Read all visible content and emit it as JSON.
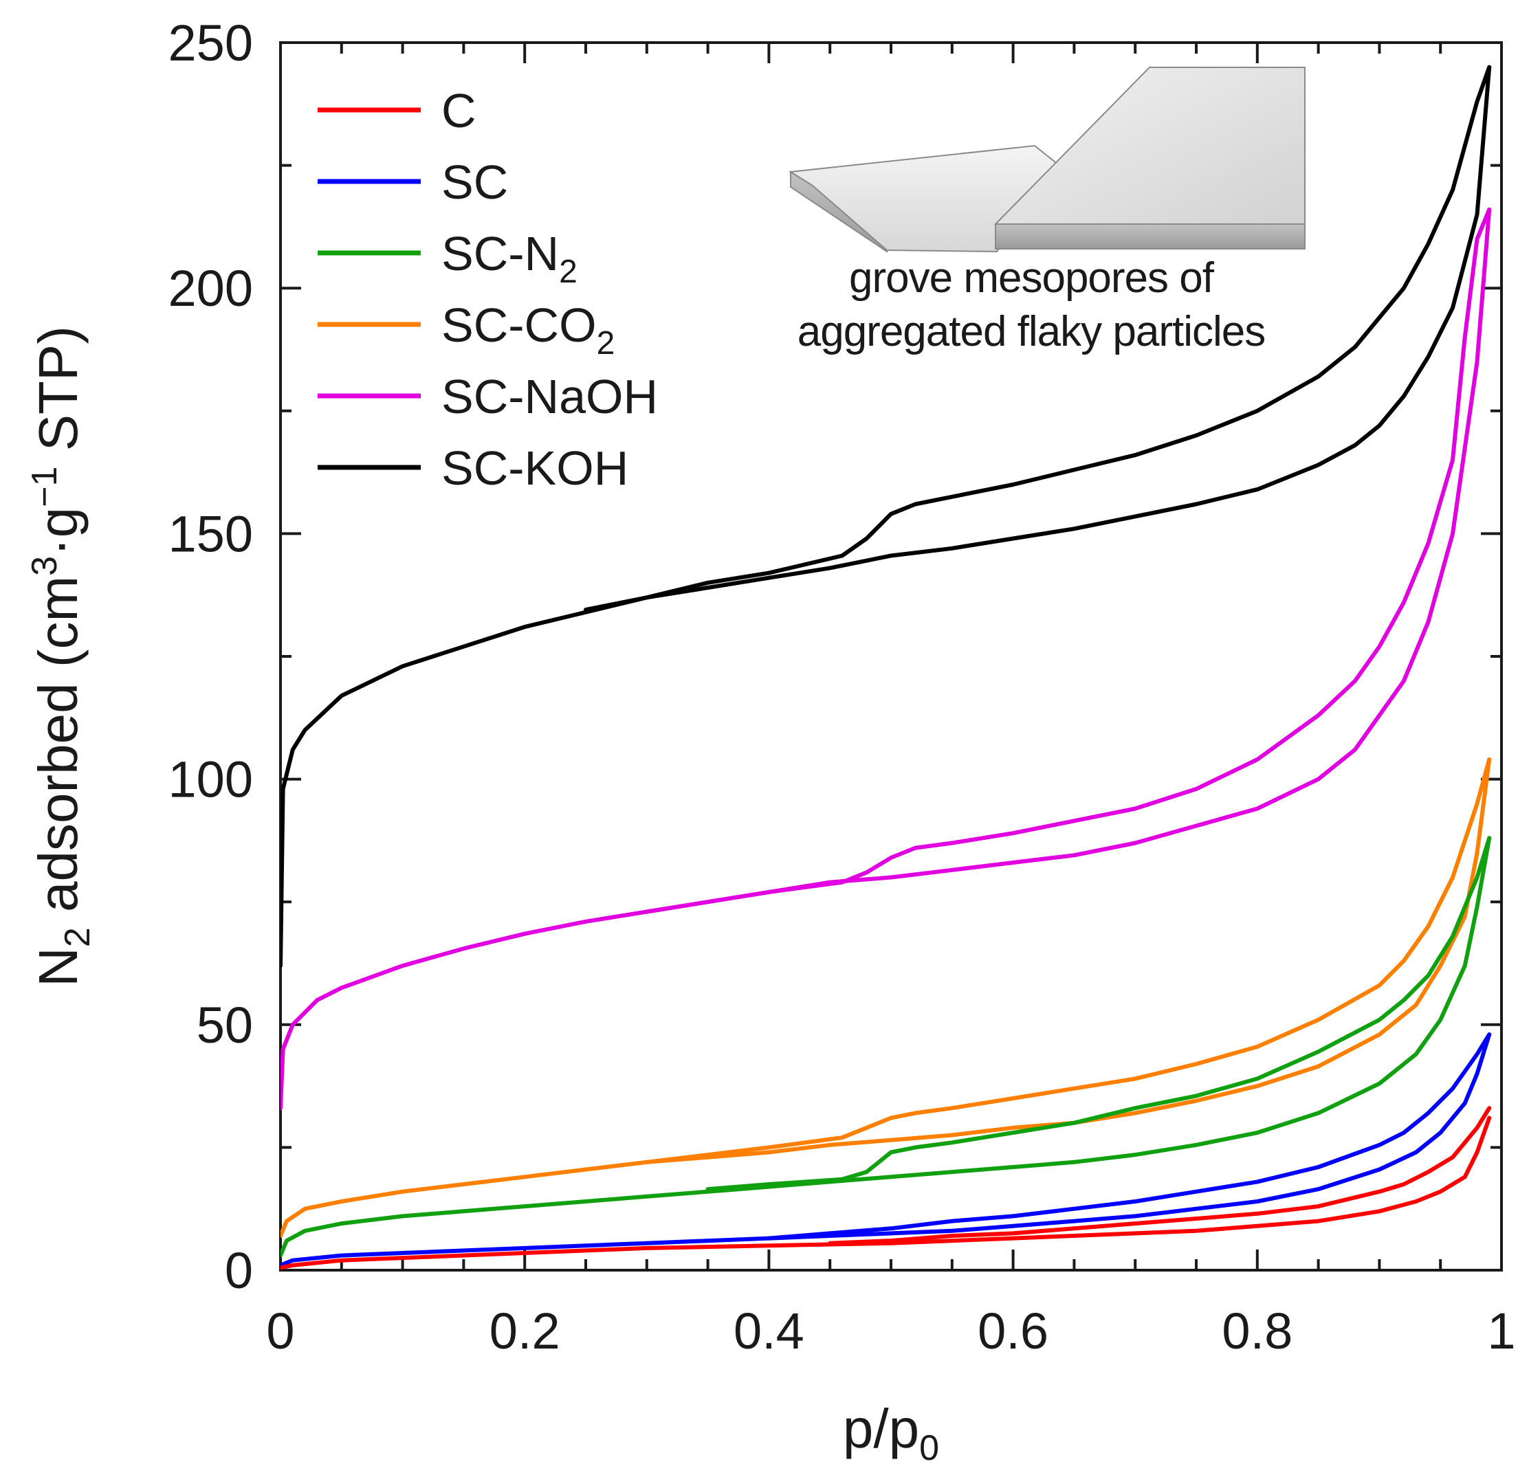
{
  "chart_data": {
    "type": "line",
    "xlabel": "p/p0",
    "xlabel_parts": {
      "main": "p/p",
      "sub": "0"
    },
    "ylabel": "N2 adsorbed (cm3·g−1 STP)",
    "ylabel_parts": {
      "a": "N",
      "a_sub": "2",
      "b": " adsorbed (cm",
      "b_sup": "3",
      "c": "·g",
      "c_sup": "−1",
      "d": " STP)"
    },
    "xlim": [
      0,
      1
    ],
    "ylim": [
      0,
      250
    ],
    "x_ticks": [
      0,
      0.2,
      0.4,
      0.6,
      0.8,
      1
    ],
    "x_tick_labels": [
      "0",
      "0.2",
      "0.4",
      "0.6",
      "0.8",
      "1"
    ],
    "y_ticks": [
      0,
      50,
      100,
      150,
      200,
      250
    ],
    "y_tick_labels": [
      "0",
      "50",
      "100",
      "150",
      "200",
      "250"
    ],
    "grid": false,
    "legend_position": "top-left",
    "inset": {
      "caption_line1": "grove mesopores of",
      "caption_line2": "aggregated flaky particles"
    },
    "series": [
      {
        "name": "SC-KOH",
        "label_main": "SC-KOH",
        "label_sub": "",
        "label_tail": "",
        "color": "#000000",
        "adsorption": [
          [
            0,
            62
          ],
          [
            0.002,
            98
          ],
          [
            0.01,
            106
          ],
          [
            0.02,
            110
          ],
          [
            0.05,
            117
          ],
          [
            0.1,
            123
          ],
          [
            0.15,
            127
          ],
          [
            0.2,
            131
          ],
          [
            0.25,
            134
          ],
          [
            0.3,
            137
          ],
          [
            0.35,
            139
          ],
          [
            0.4,
            141
          ],
          [
            0.45,
            143
          ],
          [
            0.5,
            145.5
          ],
          [
            0.55,
            147
          ],
          [
            0.6,
            149
          ],
          [
            0.65,
            151
          ],
          [
            0.7,
            153.5
          ],
          [
            0.75,
            156
          ],
          [
            0.8,
            159
          ],
          [
            0.85,
            164
          ],
          [
            0.88,
            168
          ],
          [
            0.9,
            172
          ],
          [
            0.92,
            178
          ],
          [
            0.94,
            186
          ],
          [
            0.96,
            196
          ],
          [
            0.98,
            215
          ],
          [
            0.99,
            245
          ]
        ],
        "desorption": [
          [
            0.99,
            245
          ],
          [
            0.98,
            238
          ],
          [
            0.96,
            220
          ],
          [
            0.94,
            209
          ],
          [
            0.92,
            200
          ],
          [
            0.9,
            194
          ],
          [
            0.88,
            188
          ],
          [
            0.85,
            182
          ],
          [
            0.8,
            175
          ],
          [
            0.75,
            170
          ],
          [
            0.7,
            166
          ],
          [
            0.65,
            163
          ],
          [
            0.6,
            160
          ],
          [
            0.55,
            157.5
          ],
          [
            0.52,
            156
          ],
          [
            0.5,
            154
          ],
          [
            0.48,
            149
          ],
          [
            0.46,
            145.5
          ],
          [
            0.4,
            142
          ],
          [
            0.35,
            140
          ],
          [
            0.3,
            137
          ],
          [
            0.25,
            134.5
          ]
        ]
      },
      {
        "name": "SC-NaOH",
        "label_main": "SC-NaOH",
        "label_sub": "",
        "label_tail": "",
        "color": "#e000e0",
        "adsorption": [
          [
            0,
            33
          ],
          [
            0.002,
            45
          ],
          [
            0.01,
            50
          ],
          [
            0.03,
            55
          ],
          [
            0.05,
            57.5
          ],
          [
            0.1,
            62
          ],
          [
            0.15,
            65.5
          ],
          [
            0.2,
            68.5
          ],
          [
            0.25,
            71
          ],
          [
            0.3,
            73
          ],
          [
            0.35,
            75
          ],
          [
            0.4,
            77
          ],
          [
            0.45,
            79
          ],
          [
            0.5,
            80
          ],
          [
            0.55,
            81.5
          ],
          [
            0.6,
            83
          ],
          [
            0.65,
            84.5
          ],
          [
            0.7,
            87
          ],
          [
            0.75,
            90.5
          ],
          [
            0.8,
            94
          ],
          [
            0.85,
            100
          ],
          [
            0.88,
            106
          ],
          [
            0.9,
            113
          ],
          [
            0.92,
            120
          ],
          [
            0.94,
            132
          ],
          [
            0.96,
            150
          ],
          [
            0.98,
            185
          ],
          [
            0.99,
            216
          ]
        ],
        "desorption": [
          [
            0.99,
            216
          ],
          [
            0.98,
            210
          ],
          [
            0.97,
            190
          ],
          [
            0.96,
            165
          ],
          [
            0.94,
            148
          ],
          [
            0.92,
            136
          ],
          [
            0.9,
            127
          ],
          [
            0.88,
            120
          ],
          [
            0.85,
            113
          ],
          [
            0.8,
            104
          ],
          [
            0.75,
            98
          ],
          [
            0.7,
            94
          ],
          [
            0.65,
            91.5
          ],
          [
            0.6,
            89
          ],
          [
            0.55,
            87
          ],
          [
            0.52,
            86
          ],
          [
            0.5,
            84
          ],
          [
            0.48,
            81
          ],
          [
            0.46,
            79
          ],
          [
            0.4,
            77
          ],
          [
            0.35,
            75
          ],
          [
            0.3,
            73
          ]
        ]
      },
      {
        "name": "SC-CO2",
        "label_main": "SC-CO",
        "label_sub": "2",
        "label_tail": "",
        "color": "#ff8000",
        "adsorption": [
          [
            0,
            7
          ],
          [
            0.005,
            10
          ],
          [
            0.02,
            12.5
          ],
          [
            0.05,
            14
          ],
          [
            0.1,
            16
          ],
          [
            0.15,
            17.5
          ],
          [
            0.2,
            19
          ],
          [
            0.25,
            20.5
          ],
          [
            0.3,
            22
          ],
          [
            0.35,
            23
          ],
          [
            0.4,
            24
          ],
          [
            0.45,
            25.5
          ],
          [
            0.5,
            26.5
          ],
          [
            0.55,
            27.5
          ],
          [
            0.6,
            29
          ],
          [
            0.65,
            30
          ],
          [
            0.7,
            32
          ],
          [
            0.75,
            34.5
          ],
          [
            0.8,
            37.5
          ],
          [
            0.85,
            41.5
          ],
          [
            0.9,
            48
          ],
          [
            0.93,
            54
          ],
          [
            0.95,
            62
          ],
          [
            0.97,
            72
          ],
          [
            0.98,
            85
          ],
          [
            0.99,
            104
          ]
        ],
        "desorption": [
          [
            0.99,
            104
          ],
          [
            0.98,
            95
          ],
          [
            0.96,
            80
          ],
          [
            0.94,
            70
          ],
          [
            0.92,
            63
          ],
          [
            0.9,
            58
          ],
          [
            0.85,
            51
          ],
          [
            0.8,
            45.5
          ],
          [
            0.75,
            42
          ],
          [
            0.7,
            39
          ],
          [
            0.65,
            37
          ],
          [
            0.6,
            35
          ],
          [
            0.55,
            33
          ],
          [
            0.52,
            32
          ],
          [
            0.5,
            31
          ],
          [
            0.48,
            29
          ],
          [
            0.46,
            27
          ],
          [
            0.4,
            25
          ],
          [
            0.35,
            23.5
          ],
          [
            0.3,
            22
          ]
        ]
      },
      {
        "name": "SC-N2",
        "label_main": "SC-N",
        "label_sub": "2",
        "label_tail": "",
        "color": "#10a010",
        "adsorption": [
          [
            0,
            3
          ],
          [
            0.005,
            6
          ],
          [
            0.02,
            8
          ],
          [
            0.05,
            9.5
          ],
          [
            0.1,
            11
          ],
          [
            0.15,
            12
          ],
          [
            0.2,
            13
          ],
          [
            0.25,
            14
          ],
          [
            0.3,
            15
          ],
          [
            0.35,
            16
          ],
          [
            0.4,
            17
          ],
          [
            0.45,
            18
          ],
          [
            0.5,
            19
          ],
          [
            0.55,
            20
          ],
          [
            0.6,
            21
          ],
          [
            0.65,
            22
          ],
          [
            0.7,
            23.5
          ],
          [
            0.75,
            25.5
          ],
          [
            0.8,
            28
          ],
          [
            0.85,
            32
          ],
          [
            0.9,
            38
          ],
          [
            0.93,
            44
          ],
          [
            0.95,
            51
          ],
          [
            0.97,
            62
          ],
          [
            0.98,
            74
          ],
          [
            0.99,
            88
          ]
        ],
        "desorption": [
          [
            0.99,
            88
          ],
          [
            0.98,
            80
          ],
          [
            0.96,
            68
          ],
          [
            0.94,
            60
          ],
          [
            0.92,
            55
          ],
          [
            0.9,
            51
          ],
          [
            0.85,
            44.5
          ],
          [
            0.8,
            39
          ],
          [
            0.75,
            35.5
          ],
          [
            0.7,
            33
          ],
          [
            0.65,
            30
          ],
          [
            0.6,
            28
          ],
          [
            0.55,
            26
          ],
          [
            0.52,
            25
          ],
          [
            0.5,
            24
          ],
          [
            0.48,
            20
          ],
          [
            0.46,
            18.5
          ],
          [
            0.4,
            17.5
          ],
          [
            0.35,
            16.5
          ]
        ]
      },
      {
        "name": "SC",
        "label_main": "SC",
        "label_sub": "",
        "label_tail": "",
        "color": "#0000ff",
        "adsorption": [
          [
            0,
            1
          ],
          [
            0.01,
            2
          ],
          [
            0.05,
            3
          ],
          [
            0.1,
            3.5
          ],
          [
            0.2,
            4.5
          ],
          [
            0.3,
            5.5
          ],
          [
            0.4,
            6.5
          ],
          [
            0.5,
            7.5
          ],
          [
            0.55,
            8
          ],
          [
            0.6,
            9
          ],
          [
            0.65,
            10
          ],
          [
            0.7,
            11
          ],
          [
            0.75,
            12.5
          ],
          [
            0.8,
            14
          ],
          [
            0.85,
            16.5
          ],
          [
            0.9,
            20.5
          ],
          [
            0.93,
            24
          ],
          [
            0.95,
            28
          ],
          [
            0.97,
            34
          ],
          [
            0.98,
            40
          ],
          [
            0.99,
            48
          ]
        ],
        "desorption": [
          [
            0.99,
            48
          ],
          [
            0.98,
            44
          ],
          [
            0.96,
            37
          ],
          [
            0.94,
            32
          ],
          [
            0.92,
            28
          ],
          [
            0.9,
            25.5
          ],
          [
            0.85,
            21
          ],
          [
            0.8,
            18
          ],
          [
            0.75,
            16
          ],
          [
            0.7,
            14
          ],
          [
            0.65,
            12.5
          ],
          [
            0.6,
            11
          ],
          [
            0.55,
            10
          ],
          [
            0.5,
            8.5
          ],
          [
            0.45,
            7.5
          ],
          [
            0.4,
            6.5
          ]
        ]
      },
      {
        "name": "C",
        "label_main": "C",
        "label_sub": "",
        "label_tail": "",
        "color": "#ff0000",
        "adsorption": [
          [
            0,
            0.5
          ],
          [
            0.01,
            1
          ],
          [
            0.05,
            2
          ],
          [
            0.1,
            2.5
          ],
          [
            0.2,
            3.5
          ],
          [
            0.3,
            4.5
          ],
          [
            0.4,
            5
          ],
          [
            0.5,
            5.5
          ],
          [
            0.6,
            6.5
          ],
          [
            0.7,
            7.5
          ],
          [
            0.75,
            8
          ],
          [
            0.8,
            9
          ],
          [
            0.85,
            10
          ],
          [
            0.9,
            12
          ],
          [
            0.93,
            14
          ],
          [
            0.95,
            16
          ],
          [
            0.97,
            19
          ],
          [
            0.98,
            24
          ],
          [
            0.99,
            31
          ]
        ],
        "desorption": [
          [
            0.99,
            33
          ],
          [
            0.98,
            29
          ],
          [
            0.96,
            23
          ],
          [
            0.94,
            20
          ],
          [
            0.92,
            17.5
          ],
          [
            0.9,
            16
          ],
          [
            0.85,
            13
          ],
          [
            0.8,
            11.5
          ],
          [
            0.75,
            10.5
          ],
          [
            0.7,
            9.5
          ],
          [
            0.65,
            8.5
          ],
          [
            0.6,
            7.5
          ],
          [
            0.55,
            7
          ],
          [
            0.5,
            6
          ],
          [
            0.45,
            5.5
          ]
        ]
      }
    ],
    "legend_order": [
      "C",
      "SC",
      "SC-N2",
      "SC-CO2",
      "SC-NaOH",
      "SC-KOH"
    ]
  }
}
